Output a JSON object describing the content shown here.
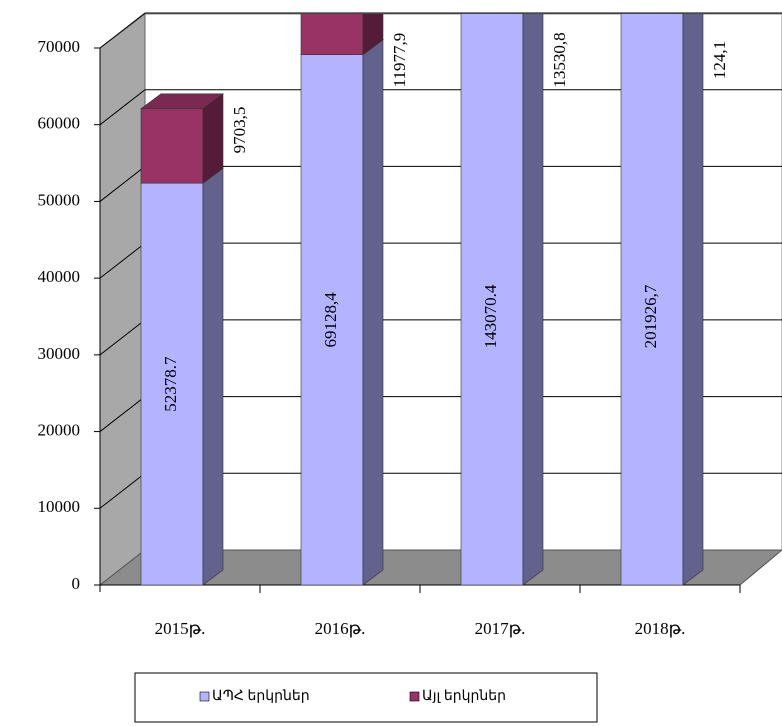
{
  "chart_data": {
    "type": "bar3d-stacked",
    "categories": [
      "2015թ.",
      "2016թ.",
      "2017թ.",
      "2018թ."
    ],
    "series": [
      {
        "name": "ԱՊՀ երկրներ",
        "color": "#b3b3ff",
        "values": [
          52378.7,
          69128.4,
          143070.4,
          201926.7
        ],
        "value_labels": [
          "52378.7",
          "69128,4",
          "143070.4",
          "201926,7"
        ]
      },
      {
        "name": "Այլ երկրներ",
        "color": "#993366",
        "values": [
          9703.5,
          11977.9,
          13530.8,
          124.1
        ],
        "value_labels": [
          "9703,5",
          "11977,9",
          "13530,8",
          "124,1"
        ]
      }
    ],
    "ylim": [
      0,
      70000
    ],
    "yticks": [
      0,
      10000,
      20000,
      30000,
      40000,
      50000,
      60000,
      70000
    ],
    "grid": true,
    "legend": "bottom"
  }
}
